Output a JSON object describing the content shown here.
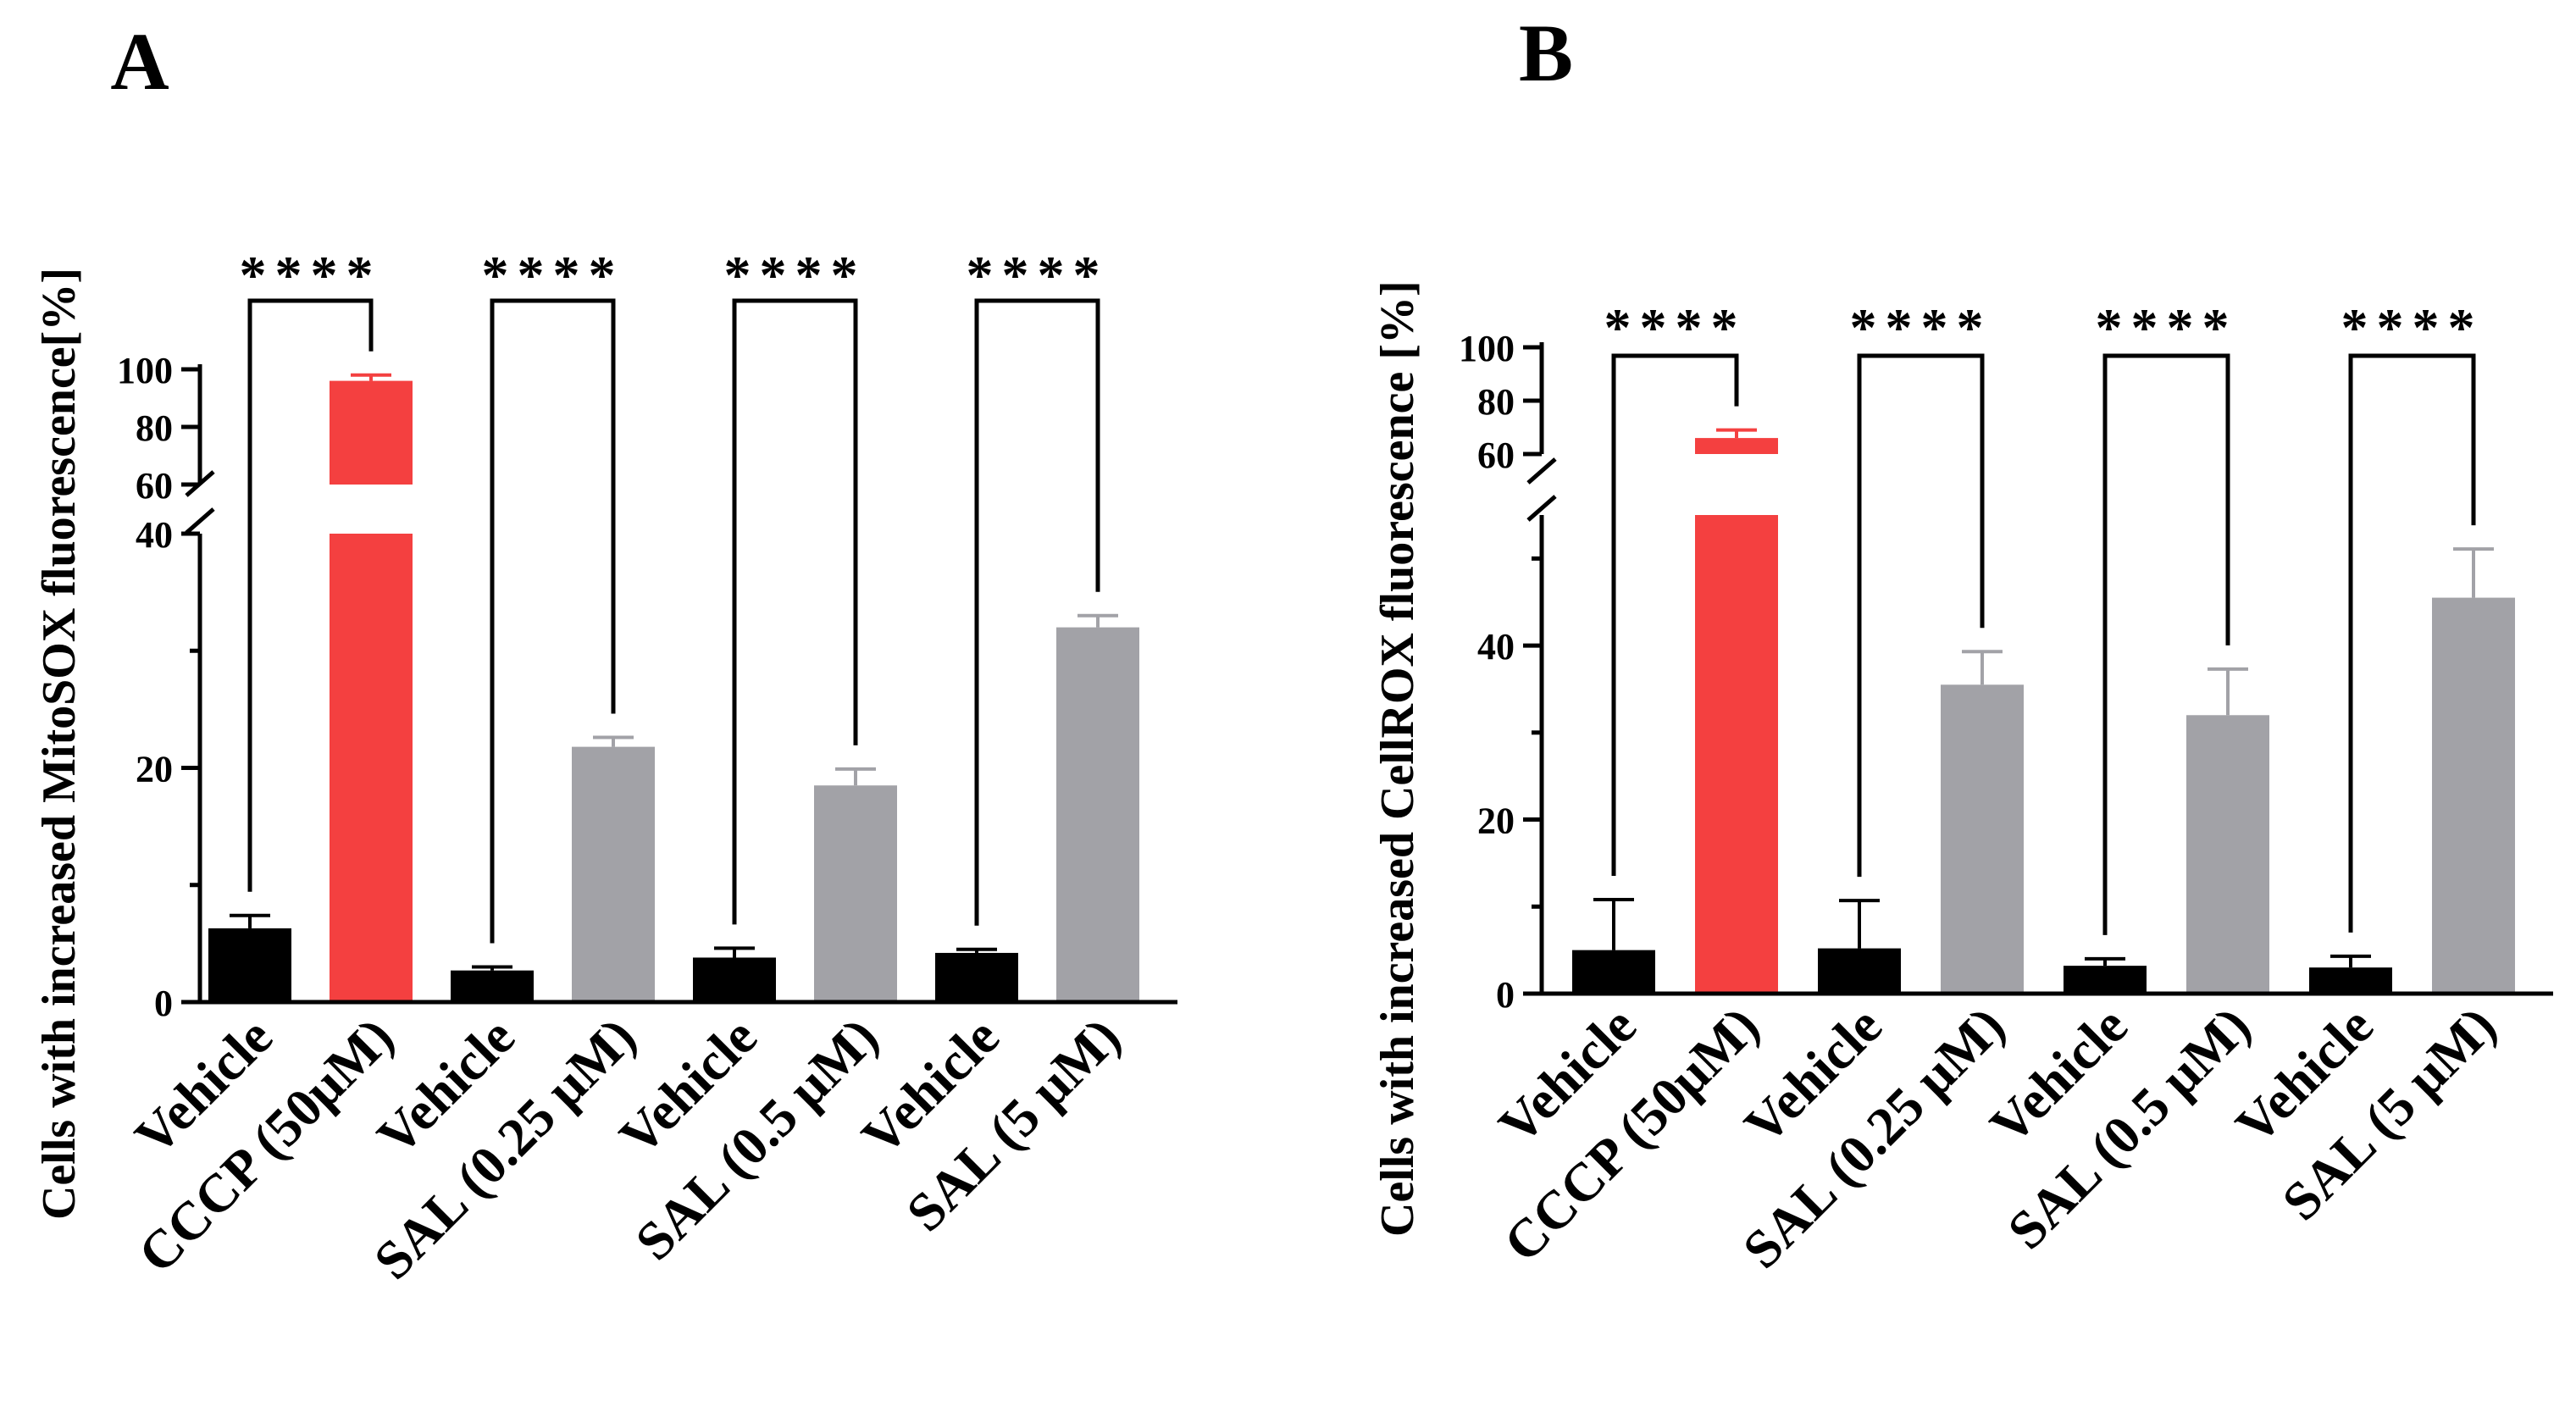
{
  "chart_data": [
    {
      "type": "bar",
      "panel_label": "A",
      "ylabel": "Cells with increased MitoSOX fluorescence[%]",
      "categories": [
        "Vehicle",
        "CCCP (50μM)",
        "Vehicle",
        "SAL (0.25 μM)",
        "Vehicle",
        "SAL (0.5 μM)",
        "Vehicle",
        "SAL (5 μM)"
      ],
      "values": [
        6.3,
        96,
        2.7,
        21.8,
        3.8,
        18.5,
        4.2,
        32.0
      ],
      "errors": [
        1.1,
        2,
        0.3,
        0.8,
        0.8,
        1.4,
        0.3,
        1.0
      ],
      "colors": [
        "#000000",
        "#f44040",
        "#000000",
        "#a2a2a7",
        "#000000",
        "#a2a2a7",
        "#000000",
        "#a2a2a7"
      ],
      "yaxis_break": {
        "lower": [
          0,
          40
        ],
        "upper": [
          60,
          100
        ]
      },
      "yticks_lower": [
        "0",
        "20",
        "40"
      ],
      "yticks_upper": [
        "60",
        "80",
        "100"
      ],
      "comparisons": [
        {
          "pair": [
            0,
            1
          ],
          "label": "****"
        },
        {
          "pair": [
            2,
            3
          ],
          "label": "****"
        },
        {
          "pair": [
            4,
            5
          ],
          "label": "****"
        },
        {
          "pair": [
            6,
            7
          ],
          "label": "****"
        }
      ]
    },
    {
      "type": "bar",
      "panel_label": "B",
      "ylabel": "Cells with increased CellROX fluorescence  [%]",
      "categories": [
        "Vehicle",
        "CCCP (50μM)",
        "Vehicle",
        "SAL (0.25 μM)",
        "Vehicle",
        "SAL (0.5 μM)",
        "Vehicle",
        "SAL (5 μM)"
      ],
      "values": [
        5.0,
        66,
        5.2,
        35.5,
        3.2,
        32.0,
        3.0,
        45.5
      ],
      "errors": [
        5.8,
        3,
        5.5,
        3.8,
        0.8,
        5.3,
        1.3,
        5.6
      ],
      "colors": [
        "#000000",
        "#f44040",
        "#000000",
        "#a2a2a7",
        "#000000",
        "#a2a2a7",
        "#000000",
        "#a2a2a7"
      ],
      "yaxis_break": {
        "lower": [
          0,
          55
        ],
        "upper": [
          60,
          100
        ]
      },
      "yticks_lower": [
        "0",
        "20",
        "40"
      ],
      "yticks_upper": [
        "60",
        "80",
        "100"
      ],
      "comparisons": [
        {
          "pair": [
            0,
            1
          ],
          "label": "****"
        },
        {
          "pair": [
            2,
            3
          ],
          "label": "****"
        },
        {
          "pair": [
            4,
            5
          ],
          "label": "****"
        },
        {
          "pair": [
            6,
            7
          ],
          "label": "****"
        }
      ]
    }
  ]
}
